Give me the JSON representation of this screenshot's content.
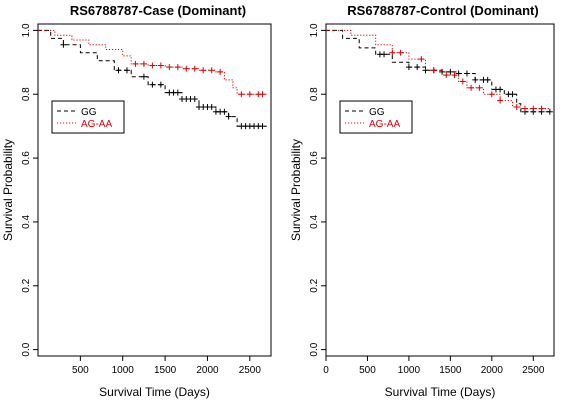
{
  "chart_data": [
    {
      "type": "line",
      "title": "RS6788787-Case (Dominant)",
      "xlabel": "Survival Time (Days)",
      "ylabel": "Survival Probability",
      "xlim": [
        0,
        2750
      ],
      "ylim": [
        -0.02,
        1.02
      ],
      "x_ticks": [
        500,
        1000,
        1500,
        2000,
        2500
      ],
      "y_ticks": [
        0.0,
        0.2,
        0.4,
        0.6,
        0.8,
        1.0
      ],
      "x_tick_labels": [
        "500",
        "1000",
        "1500",
        "2000",
        "2500"
      ],
      "y_tick_labels": [
        "0.0",
        "0.2",
        "0.4",
        "0.6",
        "0.8",
        "1.0"
      ],
      "legend_position": "upper-left",
      "series": [
        {
          "name": "GG",
          "color": "#000000",
          "line_style": "dashed",
          "points": [
            [
              0,
              1.0
            ],
            [
              150,
              0.975
            ],
            [
              300,
              0.955
            ],
            [
              500,
              0.93
            ],
            [
              700,
              0.905
            ],
            [
              900,
              0.875
            ],
            [
              1100,
              0.855
            ],
            [
              1300,
              0.83
            ],
            [
              1500,
              0.805
            ],
            [
              1700,
              0.785
            ],
            [
              1900,
              0.76
            ],
            [
              2100,
              0.745
            ],
            [
              2250,
              0.73
            ],
            [
              2350,
              0.7
            ],
            [
              2700,
              0.7
            ]
          ],
          "censor_x": [
            300,
            950,
            1050,
            1250,
            1350,
            1450,
            1550,
            1600,
            1650,
            1700,
            1750,
            1800,
            1850,
            1900,
            1950,
            2000,
            2050,
            2100,
            2150,
            2200,
            2250,
            2400,
            2450,
            2500,
            2550,
            2600,
            2650
          ]
        },
        {
          "name": "AG-AA",
          "color": "#dd0000",
          "line_style": "dotted",
          "points": [
            [
              0,
              1.0
            ],
            [
              200,
              0.985
            ],
            [
              400,
              0.97
            ],
            [
              600,
              0.955
            ],
            [
              800,
              0.94
            ],
            [
              1000,
              0.92
            ],
            [
              1100,
              0.895
            ],
            [
              1300,
              0.89
            ],
            [
              1500,
              0.885
            ],
            [
              1700,
              0.88
            ],
            [
              1900,
              0.875
            ],
            [
              2100,
              0.87
            ],
            [
              2200,
              0.845
            ],
            [
              2300,
              0.82
            ],
            [
              2350,
              0.8
            ],
            [
              2700,
              0.8
            ]
          ],
          "censor_x": [
            1150,
            1250,
            1350,
            1450,
            1550,
            1650,
            1750,
            1850,
            1950,
            2050,
            2150,
            2400,
            2500,
            2600,
            2650
          ]
        }
      ]
    },
    {
      "type": "line",
      "title": "RS6788787-Control (Dominant)",
      "xlabel": "Survival Time (Days)",
      "ylabel": "Survival Probability",
      "xlim": [
        0,
        2750
      ],
      "ylim": [
        -0.02,
        1.02
      ],
      "x_ticks": [
        0,
        500,
        1000,
        1500,
        2000,
        2500
      ],
      "y_ticks": [
        0.0,
        0.2,
        0.4,
        0.6,
        0.8,
        1.0
      ],
      "x_tick_labels": [
        "0",
        "500",
        "1000",
        "1500",
        "2000",
        "2500"
      ],
      "y_tick_labels": [
        "0.0",
        "0.2",
        "0.4",
        "0.6",
        "0.8",
        "1.0"
      ],
      "legend_position": "upper-left",
      "series": [
        {
          "name": "GG",
          "color": "#000000",
          "line_style": "dashed",
          "points": [
            [
              0,
              1.0
            ],
            [
              200,
              0.975
            ],
            [
              400,
              0.945
            ],
            [
              600,
              0.925
            ],
            [
              800,
              0.9
            ],
            [
              1000,
              0.885
            ],
            [
              1200,
              0.875
            ],
            [
              1400,
              0.87
            ],
            [
              1600,
              0.865
            ],
            [
              1800,
              0.845
            ],
            [
              2000,
              0.815
            ],
            [
              2150,
              0.8
            ],
            [
              2300,
              0.77
            ],
            [
              2350,
              0.745
            ],
            [
              2700,
              0.745
            ]
          ],
          "censor_x": [
            650,
            700,
            1000,
            1100,
            1200,
            1300,
            1400,
            1500,
            1600,
            1700,
            1800,
            1900,
            1950,
            2050,
            2100,
            2200,
            2250,
            2400,
            2500,
            2600,
            2700
          ]
        },
        {
          "name": "AG-AA",
          "color": "#dd0000",
          "line_style": "dotted",
          "points": [
            [
              0,
              1.0
            ],
            [
              300,
              0.985
            ],
            [
              600,
              0.955
            ],
            [
              800,
              0.93
            ],
            [
              1000,
              0.91
            ],
            [
              1200,
              0.875
            ],
            [
              1400,
              0.86
            ],
            [
              1600,
              0.84
            ],
            [
              1700,
              0.82
            ],
            [
              1900,
              0.8
            ],
            [
              2100,
              0.78
            ],
            [
              2250,
              0.76
            ],
            [
              2350,
              0.755
            ],
            [
              2700,
              0.755
            ]
          ],
          "censor_x": [
            800,
            900,
            1150,
            1300,
            1450,
            1550,
            1650,
            1750,
            1850,
            2000,
            2100,
            2300,
            2400,
            2500,
            2600
          ]
        }
      ]
    }
  ]
}
